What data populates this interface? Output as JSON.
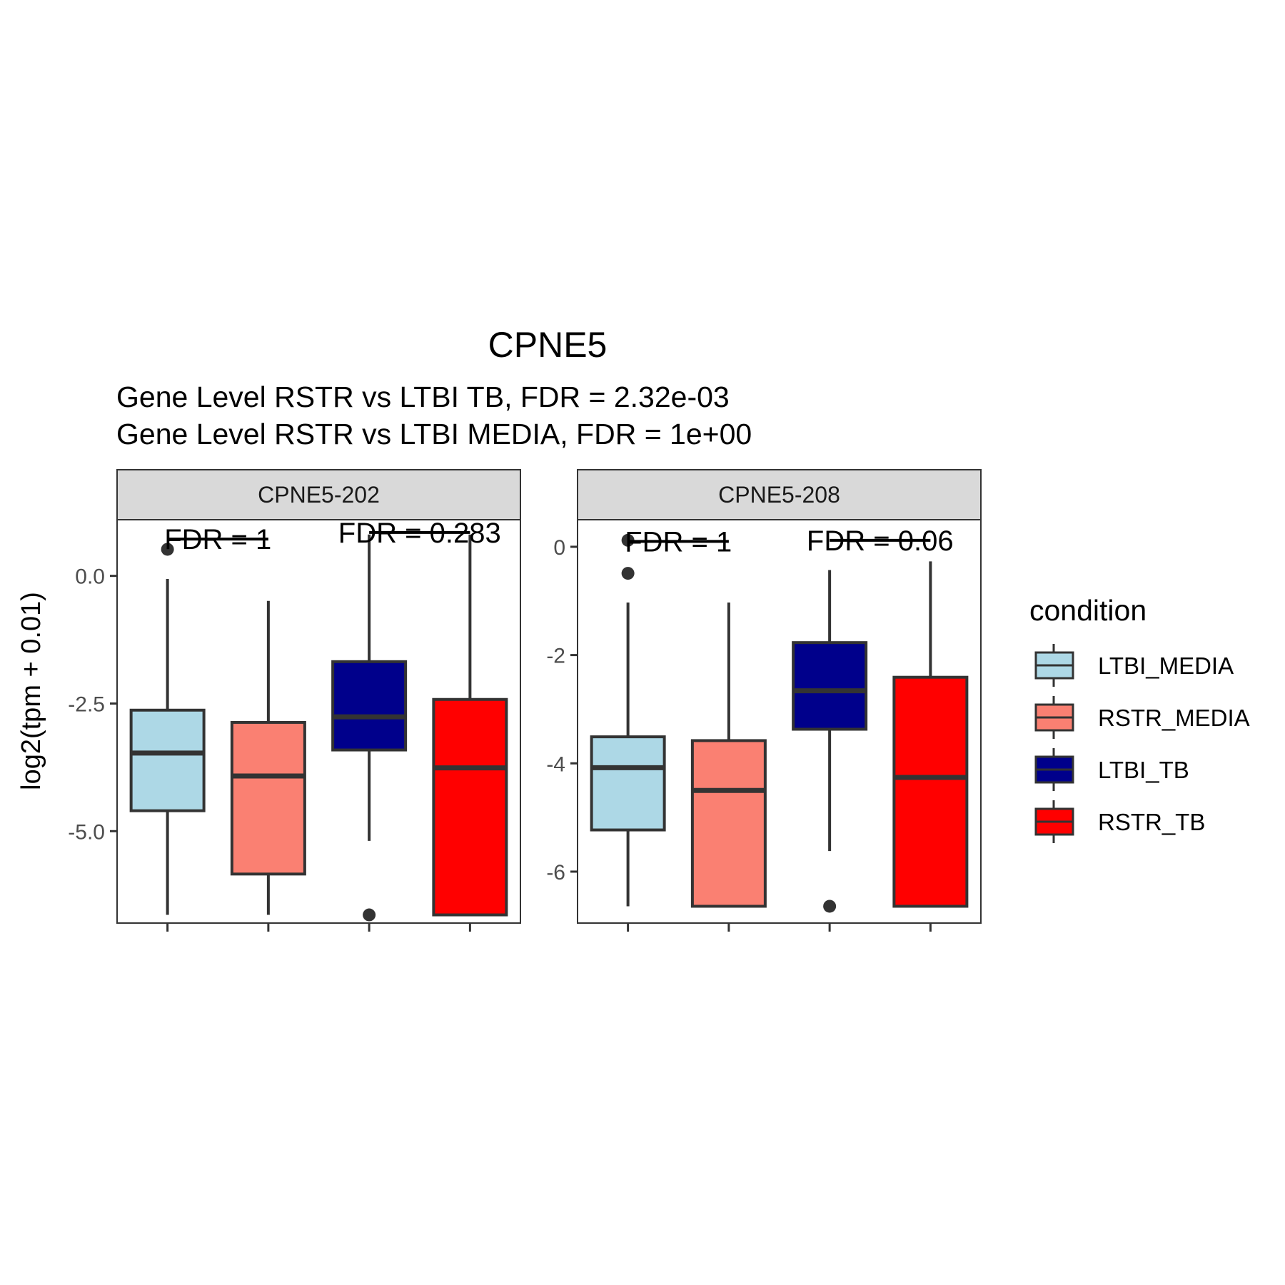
{
  "title": "CPNE5",
  "subtitle_lines": [
    "Gene Level RSTR vs LTBI TB, FDR =  2.32e-03",
    "Gene Level RSTR vs LTBI MEDIA, FDR =  1e+00"
  ],
  "ylabel": "log2(tpm + 0.01)",
  "legend": {
    "title": "condition",
    "placement": "right",
    "items": [
      {
        "label": "LTBI_MEDIA",
        "color": "#ADD8E6"
      },
      {
        "label": "RSTR_MEDIA",
        "color": "#FA8072"
      },
      {
        "label": "LTBI_TB",
        "color": "#00008B"
      },
      {
        "label": "RSTR_TB",
        "color": "#FF0000"
      }
    ]
  },
  "colors": {
    "box_outline": "#333333",
    "strip_fill": "#D9D9D9",
    "panel_border": "#333333",
    "text_dark": "#000000",
    "tick_text": "#4D4D4D"
  },
  "chart_data": [
    {
      "type": "box",
      "facet": "CPNE5-202",
      "ylim": [
        -6.8,
        1.1
      ],
      "yticks": [
        0.0,
        -2.5,
        -5.0
      ],
      "ytick_labels": [
        "0.0",
        "-2.5",
        "-5.0"
      ],
      "grid": false,
      "groups": [
        {
          "condition": "LTBI_MEDIA",
          "whisker_low": -6.64,
          "q1": -4.6,
          "median": -3.47,
          "q3": -2.63,
          "whisker_high": -0.06,
          "outliers": [
            0.52
          ]
        },
        {
          "condition": "RSTR_MEDIA",
          "whisker_low": -6.64,
          "q1": -5.84,
          "median": -3.92,
          "q3": -2.87,
          "whisker_high": -0.49,
          "outliers": []
        },
        {
          "condition": "LTBI_TB",
          "whisker_low": -5.19,
          "q1": -3.41,
          "median": -2.76,
          "q3": -1.68,
          "whisker_high": 0.81,
          "outliers": [
            -6.64
          ]
        },
        {
          "condition": "RSTR_TB",
          "whisker_low": -6.64,
          "q1": -6.64,
          "median": -3.76,
          "q3": -2.42,
          "whisker_high": 0.81,
          "outliers": []
        }
      ],
      "comparisons": [
        {
          "label": "FDR =  1",
          "from": "LTBI_MEDIA",
          "to": "RSTR_MEDIA",
          "y": 0.72
        },
        {
          "label": "FDR =  0.283",
          "from": "LTBI_TB",
          "to": "RSTR_TB",
          "y": 0.85
        }
      ]
    },
    {
      "type": "box",
      "facet": "CPNE5-208",
      "ylim": [
        -6.95,
        0.5
      ],
      "yticks": [
        0,
        -2,
        -4,
        -6
      ],
      "ytick_labels": [
        "0",
        "-2",
        "-4",
        "-6"
      ],
      "grid": false,
      "groups": [
        {
          "condition": "LTBI_MEDIA",
          "whisker_low": -6.64,
          "q1": -5.23,
          "median": -4.08,
          "q3": -3.51,
          "whisker_high": -1.03,
          "outliers": [
            0.12,
            -0.49
          ]
        },
        {
          "condition": "RSTR_MEDIA",
          "whisker_low": -6.64,
          "q1": -6.64,
          "median": -4.5,
          "q3": -3.58,
          "whisker_high": -1.03,
          "outliers": []
        },
        {
          "condition": "LTBI_TB",
          "whisker_low": -5.62,
          "q1": -3.37,
          "median": -2.66,
          "q3": -1.77,
          "whisker_high": -0.43,
          "outliers": [
            -6.64
          ]
        },
        {
          "condition": "RSTR_TB",
          "whisker_low": -6.64,
          "q1": -6.64,
          "median": -4.26,
          "q3": -2.41,
          "whisker_high": -0.27,
          "outliers": []
        }
      ],
      "comparisons": [
        {
          "label": "FDR =  1",
          "from": "LTBI_MEDIA",
          "to": "RSTR_MEDIA",
          "y": 0.1
        },
        {
          "label": "FDR =  0.06",
          "from": "LTBI_TB",
          "to": "RSTR_TB",
          "y": 0.12
        }
      ]
    }
  ]
}
